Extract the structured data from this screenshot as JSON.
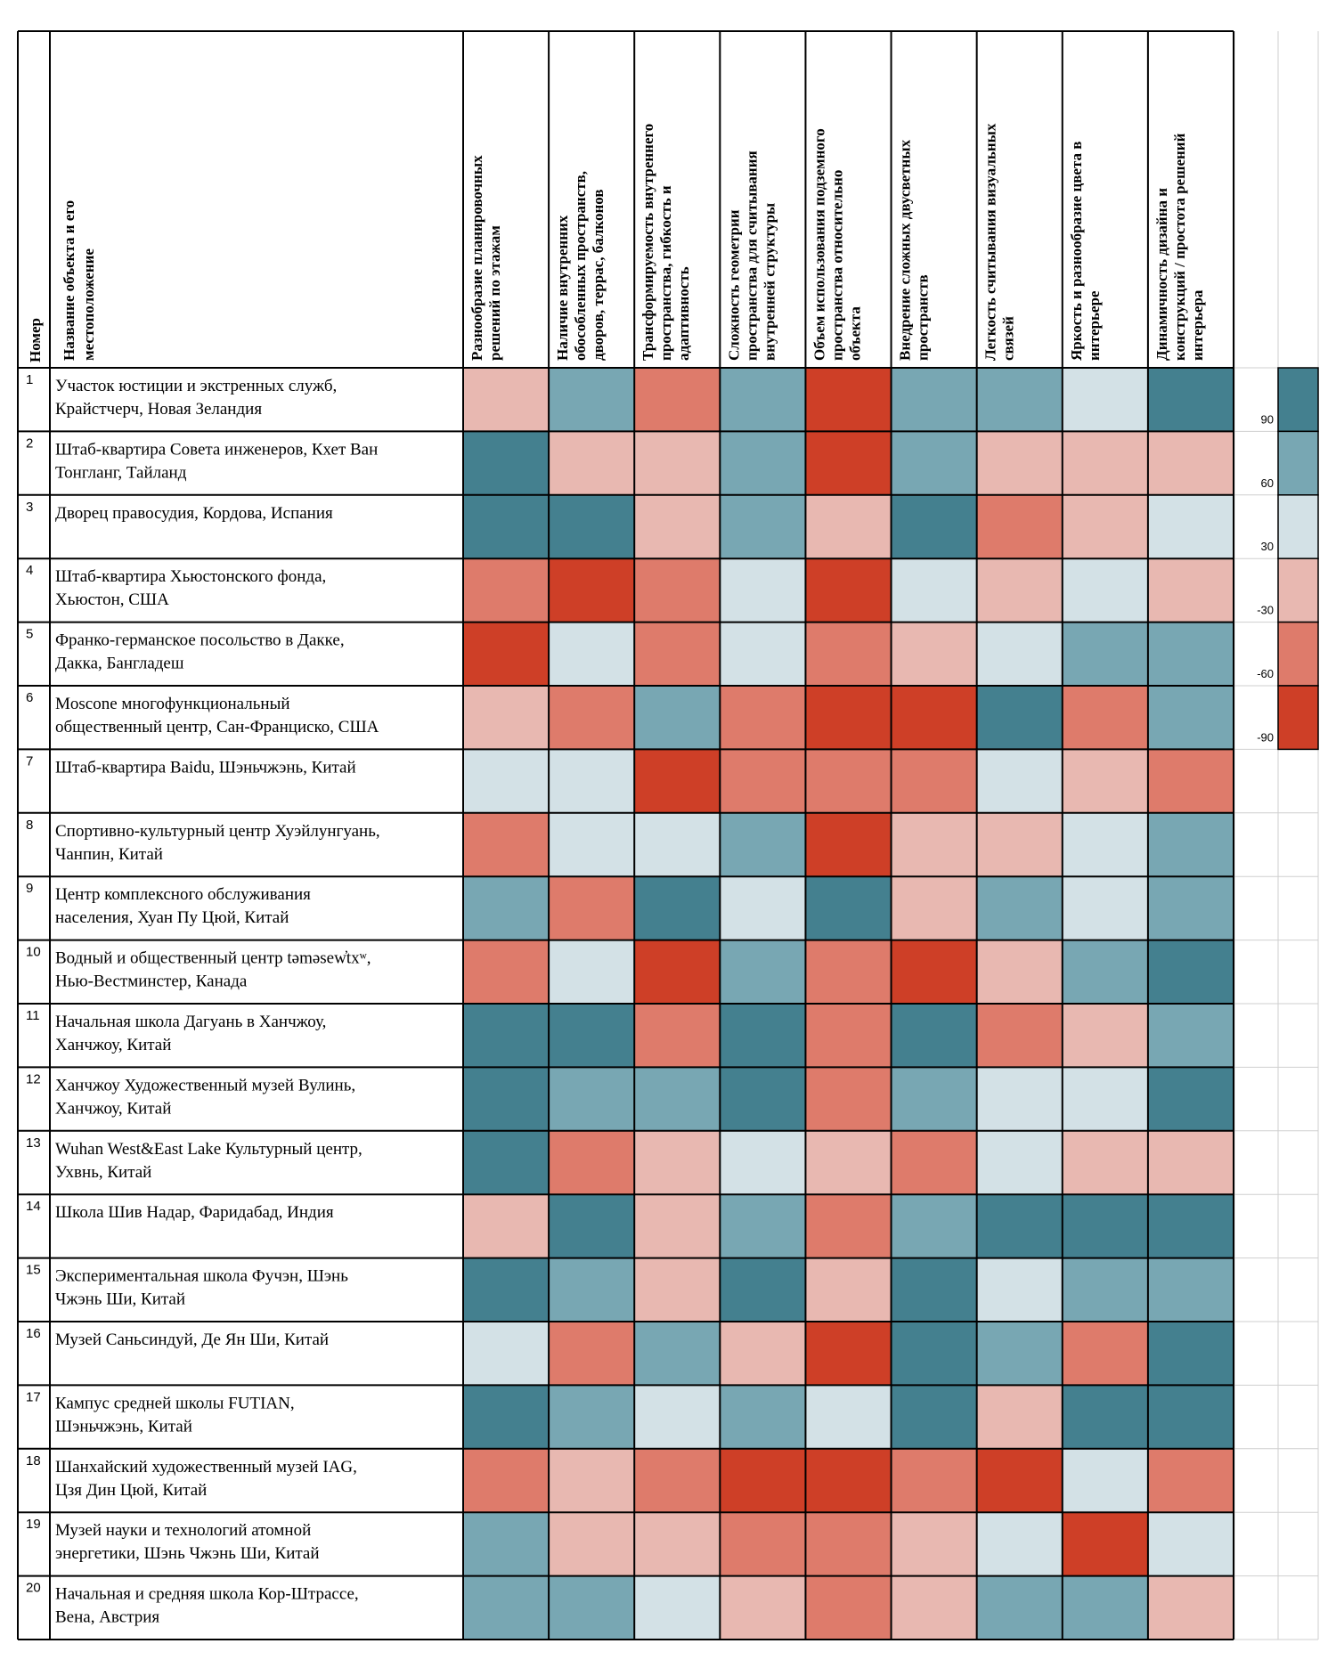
{
  "chart_data": {
    "type": "heatmap",
    "header": {
      "number": "Номер",
      "name_lines": [
        "Название объекта и его",
        "местоположение"
      ]
    },
    "columns": [
      [
        "Разнообразие планировочных",
        "решений по этажам"
      ],
      [
        "Наличие внутренних",
        "обособленных пространств,",
        "дворов, террас, балконов"
      ],
      [
        "Трансформируемость внутреннего",
        "пространства, гибкость и",
        "адаптивность"
      ],
      [
        "Сложность геометрии",
        "пространства для считывания",
        "внутренней структуры"
      ],
      [
        "Объем использования подземного",
        "пространства относительно",
        "объекта"
      ],
      [
        "Внедрение сложных двусветных",
        "пространств"
      ],
      [
        "Легкость считывания  визуальных",
        "связей"
      ],
      [
        "Яркость и разнообразие цвета в",
        "интерьере"
      ],
      [
        "Динамичность дизайна и",
        "конструкций / простота решений",
        "интерьера"
      ]
    ],
    "scale": [
      90,
      60,
      30,
      -30,
      -60,
      -90
    ],
    "colors": {
      "90": "#44808f",
      "60": "#78a7b3",
      "30": "#d3e1e6",
      "-30": "#e8b8b1",
      "-60": "#de7b6b",
      "-90": "#ce3f27"
    },
    "rows": [
      {
        "num": "1",
        "lines": [
          "Участок юстиции и экстренных служб,",
          "Крайстчерч, Новая Зеландия"
        ],
        "values": [
          -30,
          60,
          -60,
          60,
          -90,
          60,
          60,
          30,
          90
        ]
      },
      {
        "num": "2",
        "lines": [
          "Штаб-квартира Совета инженеров, Кхет Ван",
          "Тонгланг, Тайланд"
        ],
        "values": [
          90,
          -30,
          -30,
          60,
          -90,
          60,
          -30,
          -30,
          -30
        ]
      },
      {
        "num": "3",
        "lines": [
          "Дворец правосудия, Кордова, Испания"
        ],
        "values": [
          90,
          90,
          -30,
          60,
          -30,
          90,
          -60,
          -30,
          30
        ]
      },
      {
        "num": "4",
        "lines": [
          "Штаб-квартира Хьюстонского фонда,",
          "Хьюстон, США"
        ],
        "values": [
          -60,
          -90,
          -60,
          30,
          -90,
          30,
          -30,
          30,
          -30
        ]
      },
      {
        "num": "5",
        "lines": [
          "Франко-германское посольство в Дакке,",
          "Дакка, Бангладеш"
        ],
        "values": [
          -90,
          30,
          -60,
          30,
          -60,
          -30,
          30,
          60,
          60
        ]
      },
      {
        "num": "6",
        "lines": [
          "Moscone многофункциональный",
          "общественный центр, Сан-Франциско, США"
        ],
        "values": [
          -30,
          -60,
          60,
          -60,
          -90,
          -90,
          90,
          -60,
          60
        ]
      },
      {
        "num": "7",
        "lines": [
          "Штаб-квартира Baidu, Шэньчжэнь, Китай"
        ],
        "values": [
          30,
          30,
          -90,
          -60,
          -60,
          -60,
          30,
          -30,
          -60
        ]
      },
      {
        "num": "8",
        "lines": [
          "Спортивно-культурный центр Хуэйлунгуань,",
          "Чанпин, Китай"
        ],
        "values": [
          -60,
          30,
          30,
          60,
          -90,
          -30,
          -30,
          30,
          60
        ]
      },
      {
        "num": "9",
        "lines": [
          "Центр комплексного обслуживания",
          "населения, Хуан Пу Цюй, Китай"
        ],
        "values": [
          60,
          -60,
          90,
          30,
          90,
          -30,
          60,
          30,
          60
        ]
      },
      {
        "num": "10",
        "lines": [
          "Водный и общественный центр təməsew̓txʷ,",
          "Нью-Вестминстер, Канада"
        ],
        "values": [
          -60,
          30,
          -90,
          60,
          -60,
          -90,
          -30,
          60,
          90
        ]
      },
      {
        "num": "11",
        "lines": [
          "Начальная школа Дагуань в Ханчжоу,",
          "Ханчжоу, Китай"
        ],
        "values": [
          90,
          90,
          -60,
          90,
          -60,
          90,
          -60,
          -30,
          60
        ]
      },
      {
        "num": "12",
        "lines": [
          "Ханчжоу Художественный музей Вулинь,",
          "Ханчжоу, Китай"
        ],
        "values": [
          90,
          60,
          60,
          90,
          -60,
          60,
          30,
          30,
          90
        ]
      },
      {
        "num": "13",
        "lines": [
          "Wuhan West&East Lake Культурный центр,",
          "Ухвнь, Китай"
        ],
        "values": [
          90,
          -60,
          -30,
          30,
          -30,
          -60,
          30,
          -30,
          -30
        ]
      },
      {
        "num": "14",
        "lines": [
          "Школа Шив Надар, Фаридабад, Индия"
        ],
        "values": [
          -30,
          90,
          -30,
          60,
          -60,
          60,
          90,
          90,
          90
        ]
      },
      {
        "num": "15",
        "lines": [
          "Экспериментальная школа Фучэн, Шэнь",
          "Чжэнь Ши, Китай"
        ],
        "values": [
          90,
          60,
          -30,
          90,
          -30,
          90,
          30,
          60,
          60
        ]
      },
      {
        "num": "16",
        "lines": [
          "Музей Саньсиндуй, Де Ян Ши, Китай"
        ],
        "values": [
          30,
          -60,
          60,
          -30,
          -90,
          90,
          60,
          -60,
          90
        ]
      },
      {
        "num": "17",
        "lines": [
          "Кампус средней школы FUTIAN,",
          "Шэньчжэнь, Китай"
        ],
        "values": [
          90,
          60,
          30,
          60,
          30,
          90,
          -30,
          90,
          90
        ]
      },
      {
        "num": "18",
        "lines": [
          "Шанхайский художественный музей IAG,",
          "Цзя Дин Цюй, Китай"
        ],
        "values": [
          -60,
          -30,
          -60,
          -90,
          -90,
          -60,
          -90,
          30,
          -60
        ]
      },
      {
        "num": "19",
        "lines": [
          "Музей науки и технологий атомной",
          "энергетики, Шэнь Чжэнь Ши, Китай"
        ],
        "values": [
          60,
          -30,
          -30,
          -60,
          -60,
          -30,
          30,
          -90,
          30
        ]
      },
      {
        "num": "20",
        "lines": [
          "Начальная и средняя школа Кор-Штрассе,",
          "Вена, Австрия"
        ],
        "values": [
          60,
          60,
          30,
          -30,
          -60,
          -30,
          60,
          60,
          -30
        ]
      }
    ]
  }
}
